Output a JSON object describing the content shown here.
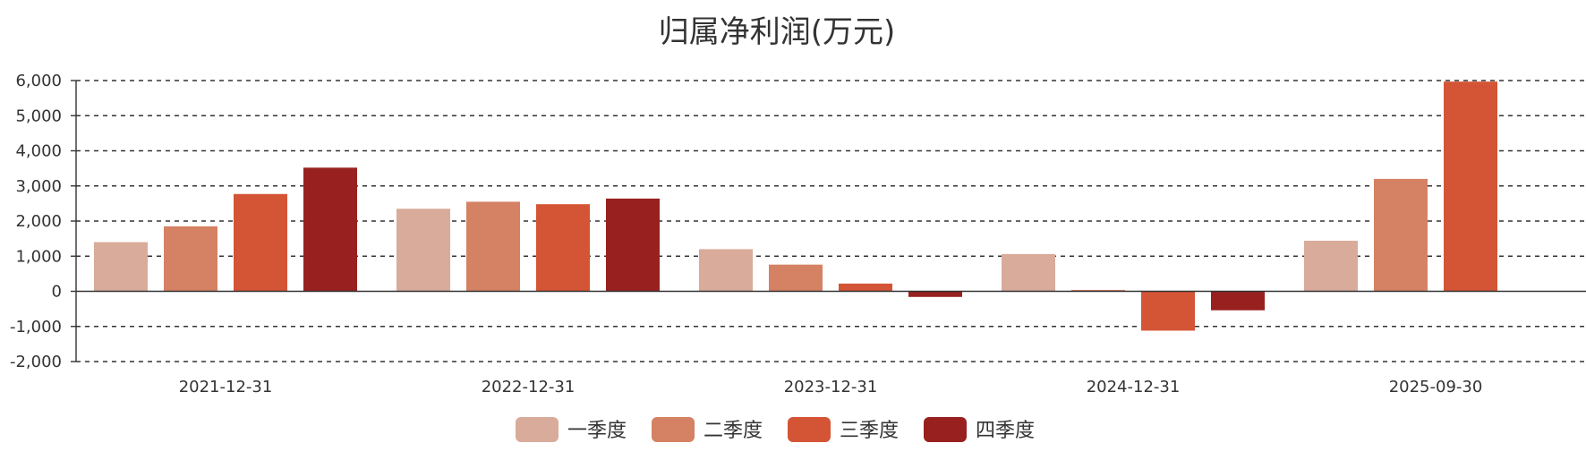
{
  "chart_data": {
    "type": "bar",
    "title": "归属净利润(万元)",
    "categories": [
      "2021-12-31",
      "2022-12-31",
      "2023-12-31",
      "2024-12-31",
      "2025-09-30"
    ],
    "series": [
      {
        "name": "一季度",
        "color": "#d9ab9a",
        "values": [
          1400,
          2350,
          1200,
          1060,
          1440
        ]
      },
      {
        "name": "二季度",
        "color": "#d48263",
        "values": [
          1850,
          2550,
          760,
          40,
          3200
        ]
      },
      {
        "name": "三季度",
        "color": "#d45535",
        "values": [
          2770,
          2480,
          220,
          -1120,
          5970
        ]
      },
      {
        "name": "四季度",
        "color": "#98211f",
        "values": [
          3520,
          2640,
          -160,
          -540,
          null
        ]
      }
    ],
    "ylim": [
      -2000,
      6000
    ],
    "yticks": [
      -2000,
      -1000,
      0,
      1000,
      2000,
      3000,
      4000,
      5000,
      6000
    ],
    "ytick_labels": [
      "-2,000",
      "-1,000",
      "0",
      "1,000",
      "2,000",
      "3,000",
      "4,000",
      "5,000",
      "6,000"
    ],
    "xlabel": "",
    "ylabel": "",
    "grid": "dashed horizontal",
    "legend": "bottom-center"
  }
}
